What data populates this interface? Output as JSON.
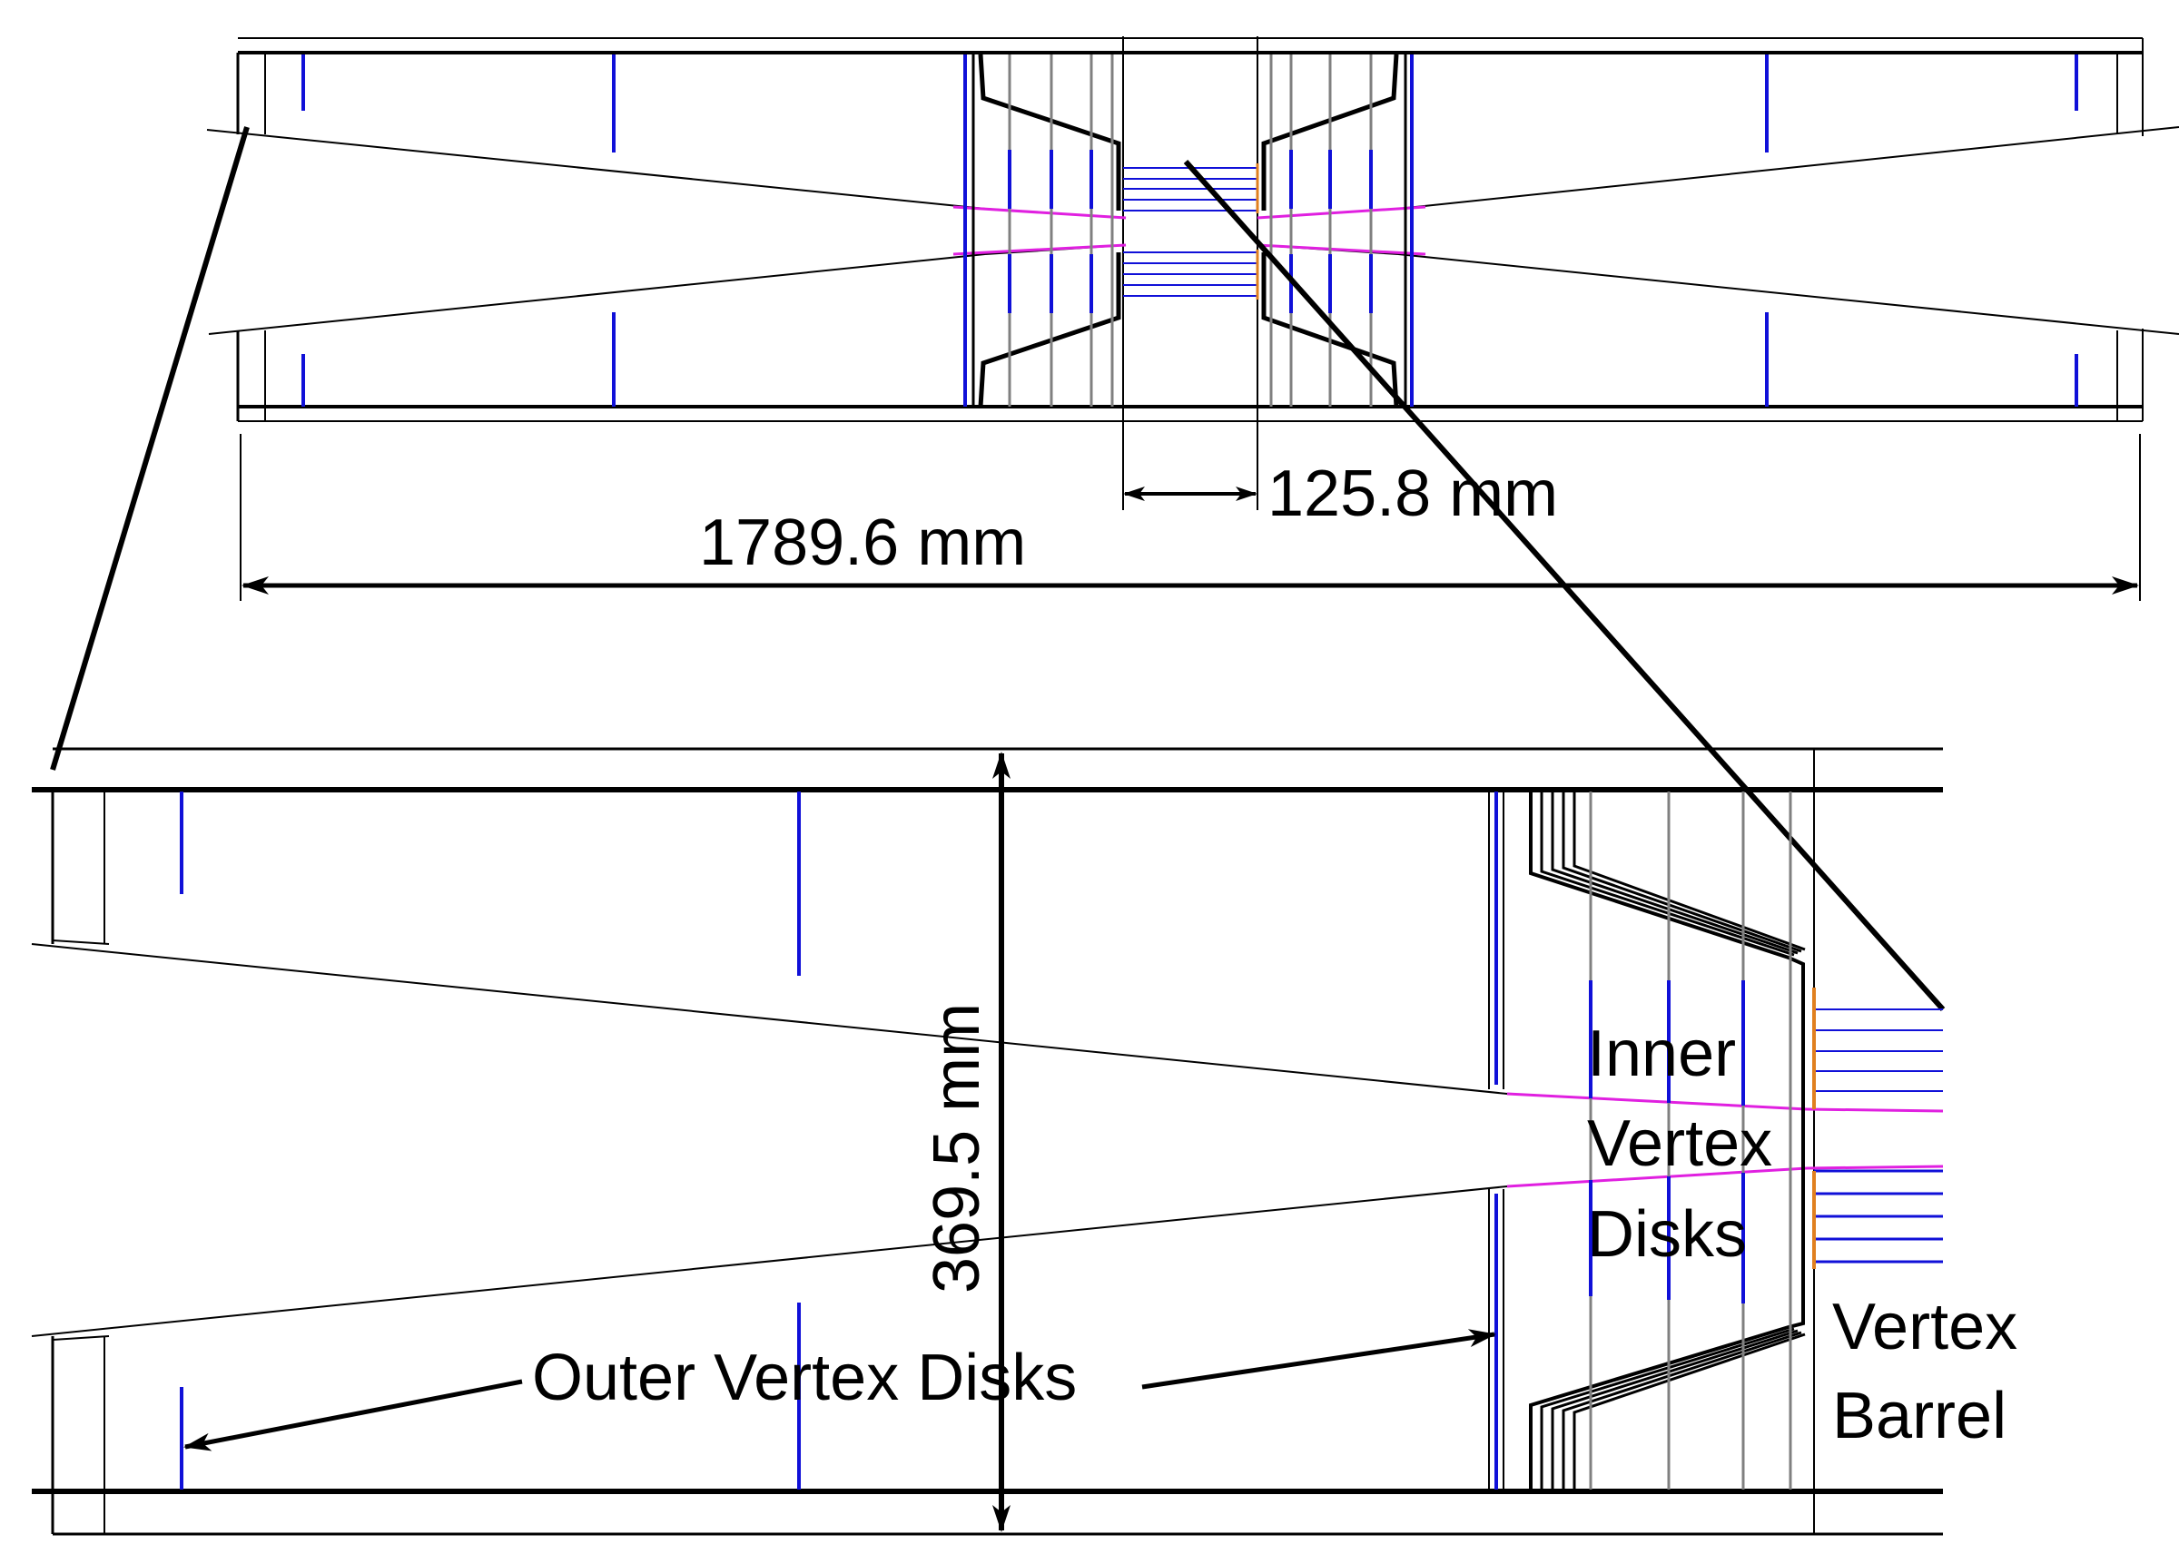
{
  "labels": {
    "overall_length": "1789.6 mm",
    "barrel_length": "125.8 mm",
    "height": "369.5 mm",
    "inner_line1": "Inner",
    "inner_line2": "Vertex",
    "inner_line3": "Disks",
    "barrel_line1": "Vertex",
    "barrel_line2": "Barrel",
    "outer_disks": "Outer Vertex Disks"
  },
  "colors": {
    "structure": "#000000",
    "disk": "#1010d8",
    "beampipe": "#e020e0",
    "module": "#e08020",
    "layer": "#808080"
  }
}
